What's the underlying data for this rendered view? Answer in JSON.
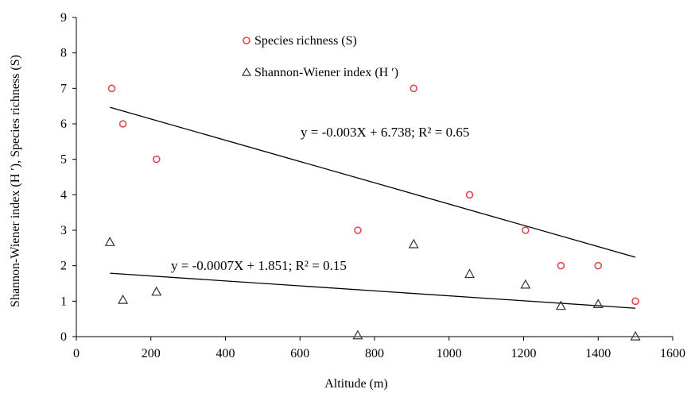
{
  "chart_data": {
    "type": "scatter",
    "xlabel": "Altitude (m)",
    "ylabel": "Shannon-Wiener index (H ʹ), Species richness (S)",
    "xlim": [
      0,
      1600
    ],
    "ylim": [
      0,
      9
    ],
    "x_ticks": [
      "0",
      "200",
      "400",
      "600",
      "800",
      "1000",
      "1200",
      "1400",
      "1600"
    ],
    "y_ticks": [
      "0",
      "1",
      "2",
      "3",
      "4",
      "5",
      "6",
      "7",
      "8",
      "9"
    ],
    "grid": false,
    "legend_position": "top-center",
    "series": [
      {
        "name": "Species richness (S)",
        "marker": "circle",
        "color": "#e0474c",
        "points": [
          {
            "x": 95,
            "y": 7
          },
          {
            "x": 125,
            "y": 6
          },
          {
            "x": 215,
            "y": 5
          },
          {
            "x": 755,
            "y": 3
          },
          {
            "x": 905,
            "y": 7
          },
          {
            "x": 1055,
            "y": 4
          },
          {
            "x": 1205,
            "y": 3
          },
          {
            "x": 1300,
            "y": 2
          },
          {
            "x": 1400,
            "y": 2
          },
          {
            "x": 1500,
            "y": 1
          }
        ],
        "trendline": {
          "x_start": 90,
          "x_end": 1500,
          "slope": -0.003,
          "intercept": 6.738,
          "equation_text": "y = -0.003X + 6.738;   R² = 0.65"
        }
      },
      {
        "name": "Shannon-Wiener index (H ʹ)",
        "marker": "triangle",
        "color": "#333333",
        "points": [
          {
            "x": 90,
            "y": 2.68
          },
          {
            "x": 125,
            "y": 1.05
          },
          {
            "x": 215,
            "y": 1.28
          },
          {
            "x": 755,
            "y": 0.05
          },
          {
            "x": 905,
            "y": 2.62
          },
          {
            "x": 1055,
            "y": 1.78
          },
          {
            "x": 1205,
            "y": 1.48
          },
          {
            "x": 1300,
            "y": 0.88
          },
          {
            "x": 1400,
            "y": 0.93
          },
          {
            "x": 1500,
            "y": 0.02
          }
        ],
        "trendline": {
          "x_start": 90,
          "x_end": 1500,
          "slope": -0.0007,
          "intercept": 1.851,
          "equation_text": "y = -0.0007X + 1.851;  R² = 0.15"
        }
      }
    ]
  }
}
